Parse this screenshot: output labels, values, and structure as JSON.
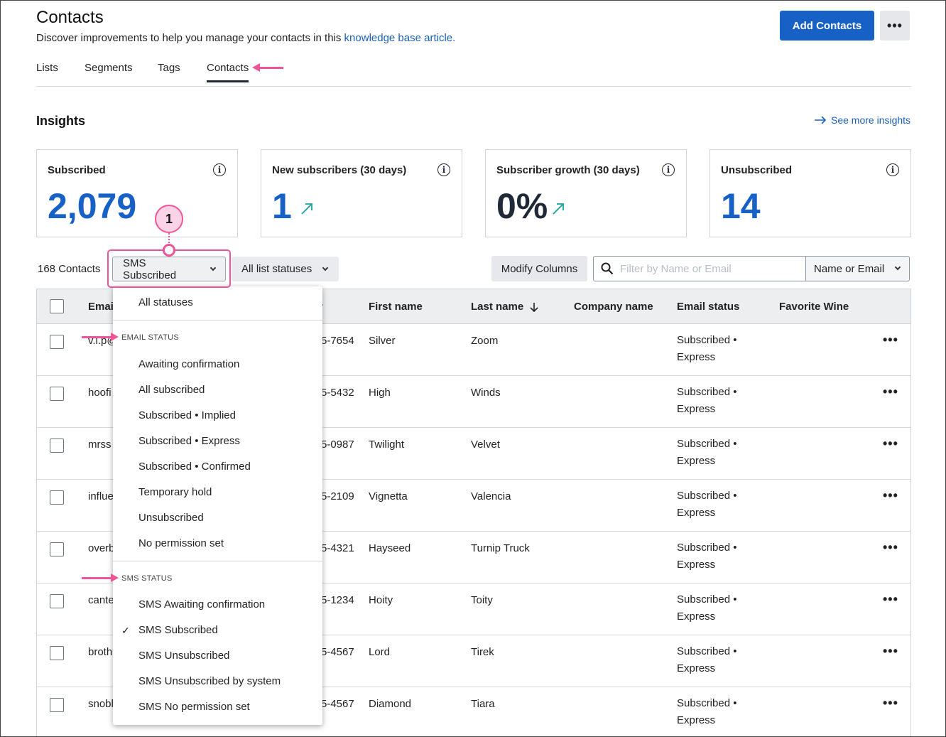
{
  "header": {
    "title": "Contacts",
    "subtitle_text": "Discover improvements to help you manage your contacts in this ",
    "subtitle_link": "knowledge base article.",
    "add_button": "Add Contacts",
    "more_icon": "more-horizontal-icon"
  },
  "tabs": [
    {
      "label": "Lists",
      "active": false
    },
    {
      "label": "Segments",
      "active": false
    },
    {
      "label": "Tags",
      "active": false
    },
    {
      "label": "Contacts",
      "active": true
    }
  ],
  "insights": {
    "title": "Insights",
    "see_more": "See more insights",
    "cards": [
      {
        "label": "Subscribed",
        "value": "2,079",
        "trend": false
      },
      {
        "label": "New subscribers (30 days)",
        "value": "1",
        "trend": true
      },
      {
        "label": "Subscriber growth (30 days)",
        "value": "0%",
        "trend": true
      },
      {
        "label": "Unsubscribed",
        "value": "14",
        "trend": false
      }
    ]
  },
  "annotation": {
    "callout_number": "1",
    "accent_color": "#ee5599"
  },
  "toolbar": {
    "contact_count": "168 Contacts",
    "sms_filter": "SMS Subscribed",
    "list_filter": "All list statuses",
    "modify_columns": "Modify Columns",
    "search_placeholder": "Filter by Name or Email",
    "search_scope": "Name or Email"
  },
  "table": {
    "columns": [
      "Email",
      "Phone number",
      "First name",
      "Last name",
      "Company name",
      "Email status",
      "Favorite Wine"
    ],
    "visible_header_fragments": {
      "email": "Emai",
      "phone": "r"
    },
    "rows": [
      {
        "email": "v.i.p@",
        "phone": "5-7654",
        "first": "Silver",
        "last": "Zoom",
        "company": "",
        "status_line1": "Subscribed •",
        "status_line2": "Express"
      },
      {
        "email": "hoofi",
        "phone": "5-5432",
        "first": "High",
        "last": "Winds",
        "company": "",
        "status_line1": "Subscribed •",
        "status_line2": "Express"
      },
      {
        "email": "mrss",
        "phone": "5-0987",
        "first": "Twilight",
        "last": "Velvet",
        "company": "",
        "status_line1": "Subscribed •",
        "status_line2": "Express"
      },
      {
        "email": "influe",
        "phone": "5-2109",
        "first": "Vignetta",
        "last": "Valencia",
        "company": "",
        "status_line1": "Subscribed •",
        "status_line2": "Express"
      },
      {
        "email": "overb",
        "phone": "5-4321",
        "first": "Hayseed",
        "last": "Turnip Truck",
        "company": "",
        "status_line1": "Subscribed •",
        "status_line2": "Express"
      },
      {
        "email": "cante",
        "phone": "5-1234",
        "first": "Hoity",
        "last": "Toity",
        "company": "",
        "status_line1": "Subscribed •",
        "status_line2": "Express"
      },
      {
        "email": "broth",
        "phone": "5-4567",
        "first": "Lord",
        "last": "Tirek",
        "company": "",
        "status_line1": "Subscribed •",
        "status_line2": "Express"
      },
      {
        "email": "snobl",
        "phone": "5-4567",
        "first": "Diamond",
        "last": "Tiara",
        "company": "",
        "status_line1": "Subscribed •",
        "status_line2": "Express"
      }
    ]
  },
  "dropdown": {
    "all_statuses": "All statuses",
    "email_header": "EMAIL STATUS",
    "email_items": [
      "Awaiting confirmation",
      "All subscribed",
      "Subscribed • Implied",
      "Subscribed • Express",
      "Subscribed • Confirmed",
      "Temporary hold",
      "Unsubscribed",
      "No permission set"
    ],
    "sms_header": "SMS STATUS",
    "sms_items": [
      "SMS Awaiting confirmation",
      "SMS Subscribed",
      "SMS Unsubscribed",
      "SMS Unsubscribed by system",
      "SMS No permission set"
    ],
    "selected": "SMS Subscribed"
  }
}
